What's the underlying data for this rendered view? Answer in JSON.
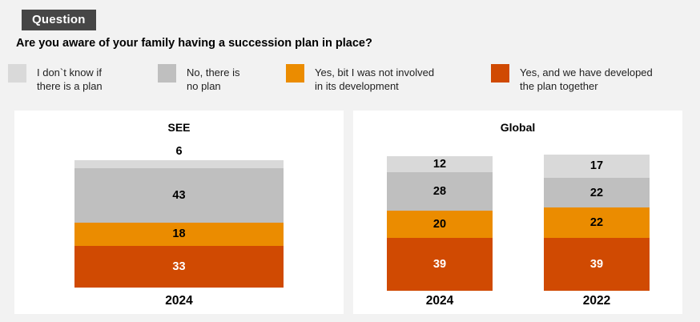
{
  "header": {
    "badge": "Question",
    "question": "Are you aware of your family having a succession plan in place?"
  },
  "legend": {
    "items": [
      {
        "name": "dont-know-if-plan",
        "label": "I don`t know if\nthere is a plan",
        "color": "#D9D9D9"
      },
      {
        "name": "no-plan",
        "label": "No, there is\nno plan",
        "color": "#BFBFBF"
      },
      {
        "name": "yes-not-involved",
        "label": "Yes, bit I was not involved\nin its development",
        "color": "#EB8C00"
      },
      {
        "name": "yes-developed-together",
        "label": "Yes, and we have developed\nthe plan together",
        "color": "#D04A02"
      }
    ]
  },
  "chart_data": [
    {
      "type": "bar",
      "title": "SEE",
      "stacked": true,
      "stack_order": "top-to-bottom",
      "unit": "percent",
      "categories": [
        "2024"
      ],
      "series": [
        {
          "name": "I don`t know if there is a plan",
          "color": "#D9D9D9",
          "label_color": "#000000",
          "values": [
            6
          ]
        },
        {
          "name": "No, there is no plan",
          "color": "#BFBFBF",
          "label_color": "#000000",
          "values": [
            43
          ]
        },
        {
          "name": "Yes, bit I was not involved in its development",
          "color": "#EB8C00",
          "label_color": "#000000",
          "values": [
            18
          ]
        },
        {
          "name": "Yes, and we have developed the plan together",
          "color": "#D04A02",
          "label_color": "#FFFFFF",
          "values": [
            33
          ]
        }
      ]
    },
    {
      "type": "bar",
      "title": "Global",
      "stacked": true,
      "stack_order": "top-to-bottom",
      "unit": "percent",
      "categories": [
        "2024",
        "2022"
      ],
      "series": [
        {
          "name": "I don`t know if there is a plan",
          "color": "#D9D9D9",
          "label_color": "#000000",
          "values": [
            12,
            17
          ]
        },
        {
          "name": "No, there is no plan",
          "color": "#BFBFBF",
          "label_color": "#000000",
          "values": [
            28,
            22
          ]
        },
        {
          "name": "Yes, bit I was not involved in its development",
          "color": "#EB8C00",
          "label_color": "#000000",
          "values": [
            20,
            22
          ]
        },
        {
          "name": "Yes, and we have developed the plan together",
          "color": "#D04A02",
          "label_color": "#FFFFFF",
          "values": [
            39,
            39
          ]
        }
      ]
    }
  ],
  "colors": {
    "background": "#F2F2F2",
    "panel": "#FFFFFF",
    "badge_bg": "#464646",
    "badge_text": "#FFFFFF",
    "light_gray": "#D9D9D9",
    "gray": "#BFBFBF",
    "orange": "#EB8C00",
    "dark_orange": "#D04A02"
  }
}
